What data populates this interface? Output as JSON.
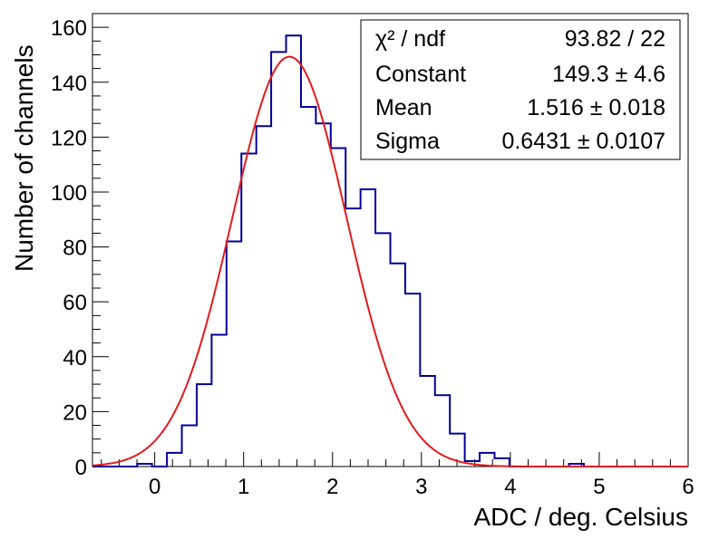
{
  "chart_data": {
    "type": "bar",
    "title": "",
    "xlabel": "ADC / deg. Celsius",
    "ylabel": "Number of channels",
    "xlim": [
      -0.7,
      6.0
    ],
    "ylim": [
      0,
      165
    ],
    "x_ticks": [
      0,
      1,
      2,
      3,
      4,
      5,
      6
    ],
    "y_ticks": [
      0,
      20,
      40,
      60,
      80,
      100,
      120,
      140,
      160
    ],
    "bin_width": 0.1675,
    "bin_low_edge": -0.7,
    "histogram_values": [
      0,
      0,
      0,
      1,
      0,
      5,
      15,
      30,
      48,
      82,
      114,
      124,
      151,
      157,
      131,
      125,
      116,
      94,
      101,
      85,
      74,
      63,
      33,
      26,
      12,
      2,
      5,
      3,
      0,
      0,
      0,
      0,
      1,
      0,
      0,
      0,
      0,
      0,
      0,
      0
    ],
    "series": [
      {
        "name": "",
        "kind": "histogram",
        "color": "#000099"
      },
      {
        "name": "",
        "kind": "gaussian-fit",
        "color": "#e31a1c"
      }
    ],
    "fit": {
      "constant": 149.3,
      "mean": 1.516,
      "sigma": 0.6431
    },
    "grid": false,
    "stats_box": {
      "position": "top-right",
      "rows": [
        {
          "label": "χ² / ndf",
          "value": "93.82 / 22"
        },
        {
          "label": "Constant",
          "value": "149.3 ± 4.6"
        },
        {
          "label": "Mean",
          "value": "1.516 ± 0.018"
        },
        {
          "label": "Sigma",
          "value": "0.6431 ± 0.0107"
        }
      ]
    }
  }
}
